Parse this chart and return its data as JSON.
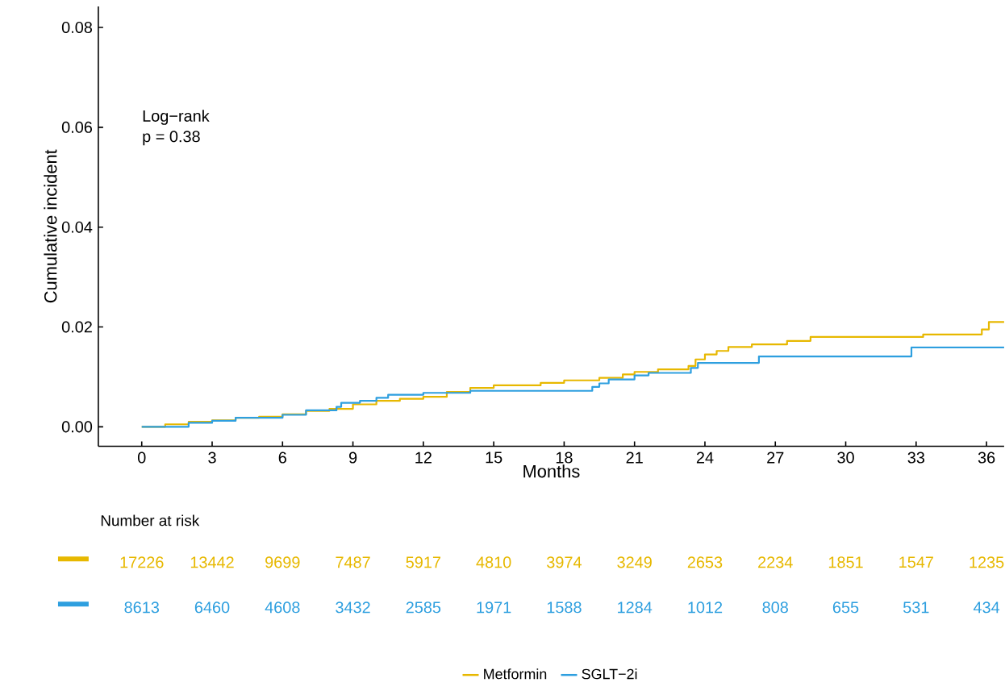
{
  "chart_data": [
    {
      "type": "step",
      "xlabel": "Months",
      "ylabel": "Cumulative incident",
      "xlim": [
        -1.85,
        36.75
      ],
      "ylim": [
        -0.0039,
        0.0842
      ],
      "xticks": [
        0,
        3,
        6,
        9,
        12,
        15,
        18,
        21,
        24,
        27,
        30,
        33,
        36
      ],
      "yticks": [
        {
          "value": 0,
          "label": "0.00"
        },
        {
          "value": 0.02,
          "label": "0.02"
        },
        {
          "value": 0.04,
          "label": "0.04"
        },
        {
          "value": 0.06,
          "label": "0.06"
        },
        {
          "value": 0.08,
          "label": "0.08"
        }
      ],
      "legend": "bottom",
      "annotations": [
        "Log−rank",
        "p = 0.38",
        "Number at risk",
        "17226",
        "13442",
        "9699",
        "7487",
        "5917",
        "4810",
        "3974",
        "3249",
        "2653",
        "2234",
        "1851",
        "1547",
        "1235",
        "8613",
        "6460",
        "4608",
        "3432",
        "2585",
        "1971",
        "1588",
        "1284",
        "1012",
        "808",
        "655",
        "531",
        "434"
      ],
      "series": [
        {
          "name": "Metformin",
          "color": "#e7b800",
          "x": [
            0,
            1,
            2,
            3,
            4,
            5,
            6,
            7,
            8,
            9,
            10,
            11,
            12,
            13,
            14,
            15,
            17,
            18,
            19.5,
            20.5,
            21,
            22,
            23.3,
            23.6,
            24,
            24.5,
            25,
            26,
            27.5,
            28.5,
            33.3,
            35.8,
            36.1,
            36.75
          ],
          "values": [
            0,
            0.0005,
            0.001,
            0.0013,
            0.0018,
            0.002,
            0.0025,
            0.0032,
            0.0036,
            0.0045,
            0.0052,
            0.0056,
            0.006,
            0.007,
            0.0078,
            0.0083,
            0.0088,
            0.0093,
            0.0098,
            0.0105,
            0.011,
            0.0115,
            0.0122,
            0.0135,
            0.0145,
            0.0152,
            0.016,
            0.0165,
            0.0172,
            0.018,
            0.0185,
            0.0195,
            0.021,
            0.021
          ]
        },
        {
          "name": "SGLT−2i",
          "color": "#2e9fdf",
          "x": [
            0,
            2,
            3,
            4,
            6,
            7,
            8.3,
            8.5,
            9.3,
            10,
            10.5,
            12,
            14,
            19.2,
            19.5,
            19.9,
            21,
            21.6,
            23.4,
            23.7,
            26.3,
            32.8,
            36.75
          ],
          "values": [
            0,
            0.0008,
            0.0012,
            0.0018,
            0.0024,
            0.0033,
            0.004,
            0.0048,
            0.0052,
            0.0058,
            0.0064,
            0.0068,
            0.0072,
            0.008,
            0.0087,
            0.0095,
            0.0103,
            0.0108,
            0.0118,
            0.0128,
            0.0141,
            0.0159,
            0.0159
          ]
        }
      ]
    }
  ]
}
